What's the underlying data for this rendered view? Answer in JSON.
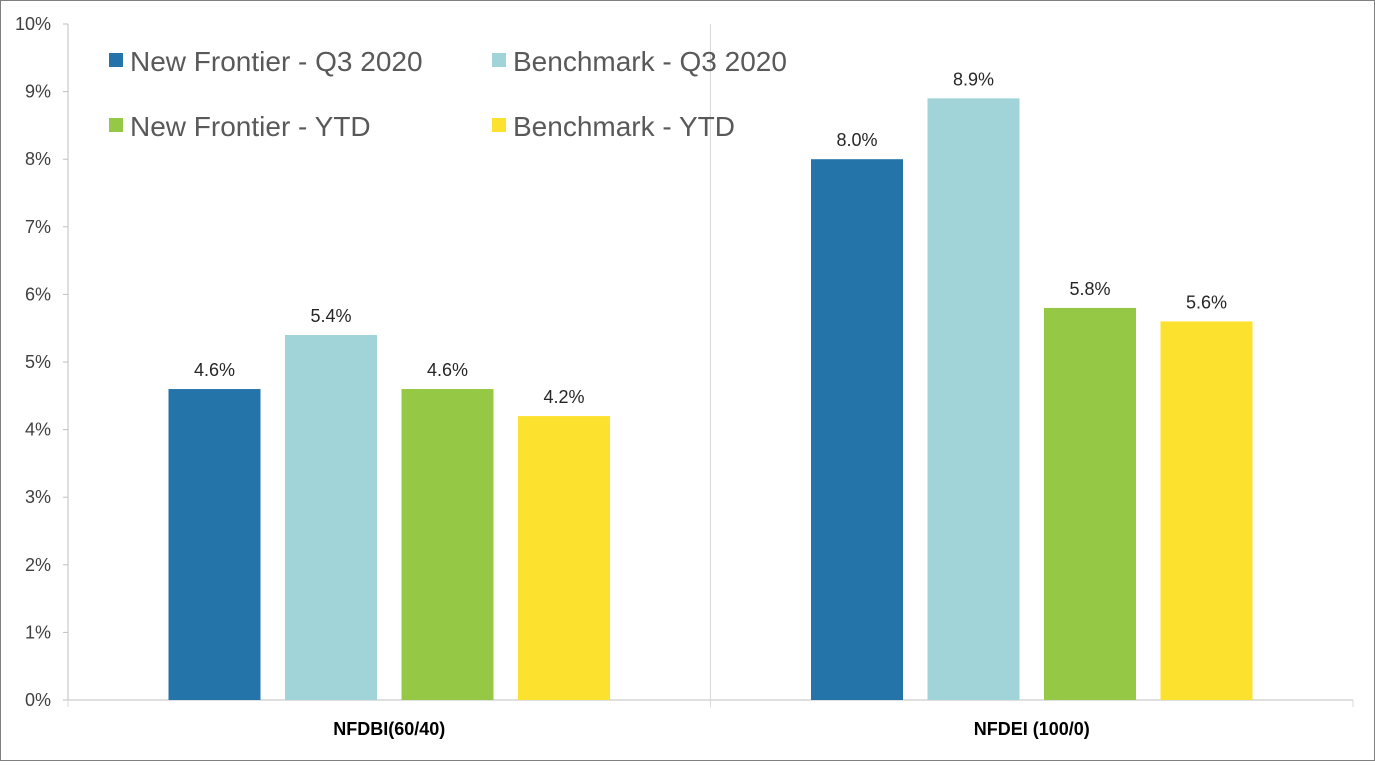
{
  "chart_data": {
    "type": "bar",
    "title": "",
    "xlabel": "",
    "ylabel": "",
    "categories": [
      "NFDBI(60/40)",
      "NFDEI (100/0)"
    ],
    "series": [
      {
        "name": "New Frontier - Q3 2020",
        "color": "#2574a9",
        "values": [
          4.6,
          8.0
        ],
        "labels": [
          "4.6%",
          "8.0%"
        ]
      },
      {
        "name": "Benchmark - Q3 2020",
        "color": "#a0d4d8",
        "values": [
          5.4,
          8.9
        ],
        "labels": [
          "5.4%",
          "8.9%"
        ]
      },
      {
        "name": "New Frontier - YTD",
        "color": "#95c945",
        "values": [
          4.6,
          5.8
        ],
        "labels": [
          "4.6%",
          "5.8%"
        ]
      },
      {
        "name": "Benchmark - YTD",
        "color": "#fde12f",
        "values": [
          4.2,
          5.6
        ],
        "labels": [
          "4.2%",
          "5.6%"
        ]
      }
    ],
    "y_ticks": [
      "0%",
      "1%",
      "2%",
      "3%",
      "4%",
      "5%",
      "6%",
      "7%",
      "8%",
      "9%",
      "10%"
    ],
    "ylim": [
      0,
      10
    ],
    "grid": false,
    "legend_position": "top-left"
  }
}
